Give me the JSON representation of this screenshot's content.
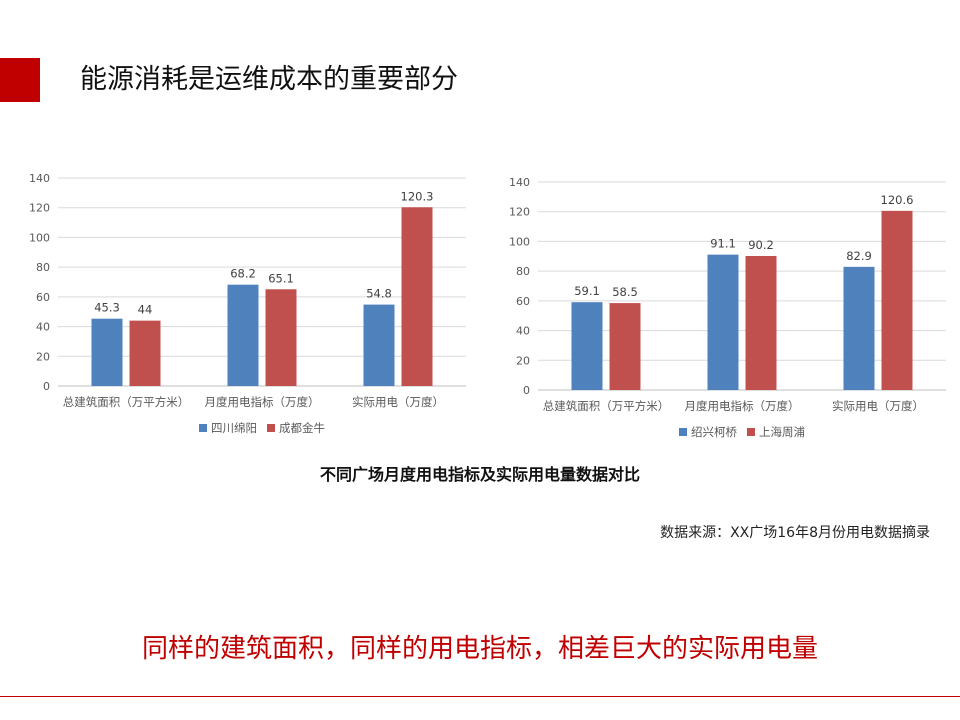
{
  "slide": {
    "title": "能源消耗是运维成本的重要部分",
    "caption": "不同广场月度用电指标及实际用电量数据对比",
    "source": "数据来源：XX广场16年8月份用电数据摘录",
    "headline": "同样的建筑面积，同样的用电指标，相差巨大的实际用电量",
    "accent_color": "#c00000"
  },
  "chart_data": [
    {
      "type": "bar",
      "title": "",
      "xlabel": "",
      "ylabel": "",
      "categories": [
        "总建筑面积（万平方米）",
        "月度用电指标（万度）",
        "实际用电（万度）"
      ],
      "series": [
        {
          "name": "四川绵阳",
          "values": [
            45.3,
            68.2,
            54.8
          ],
          "labels": [
            "45.3",
            "68.2",
            "54.8"
          ],
          "color": "#4f81bd"
        },
        {
          "name": "成都金牛",
          "values": [
            44,
            65.1,
            120.3
          ],
          "labels": [
            "44",
            "65.1",
            "120.3"
          ],
          "color": "#c0504d"
        }
      ],
      "ylim": [
        0,
        140
      ],
      "yticks": [
        "0",
        "20",
        "40",
        "60",
        "80",
        "100",
        "120",
        "140"
      ],
      "grid": true,
      "legend": "bottom"
    },
    {
      "type": "bar",
      "title": "",
      "xlabel": "",
      "ylabel": "",
      "categories": [
        "总建筑面积（万平方米）",
        "月度用电指标（万度）",
        "实际用电（万度）"
      ],
      "series": [
        {
          "name": "绍兴柯桥",
          "values": [
            59.1,
            91.1,
            82.9
          ],
          "labels": [
            "59.1",
            "91.1",
            "82.9"
          ],
          "color": "#4f81bd"
        },
        {
          "name": "上海周浦",
          "values": [
            58.5,
            90.2,
            120.6
          ],
          "labels": [
            "58.5",
            "90.2",
            "120.6"
          ],
          "color": "#c0504d"
        }
      ],
      "ylim": [
        0,
        140
      ],
      "yticks": [
        "0",
        "20",
        "40",
        "60",
        "80",
        "100",
        "120",
        "140"
      ],
      "grid": true,
      "legend": "bottom"
    }
  ]
}
